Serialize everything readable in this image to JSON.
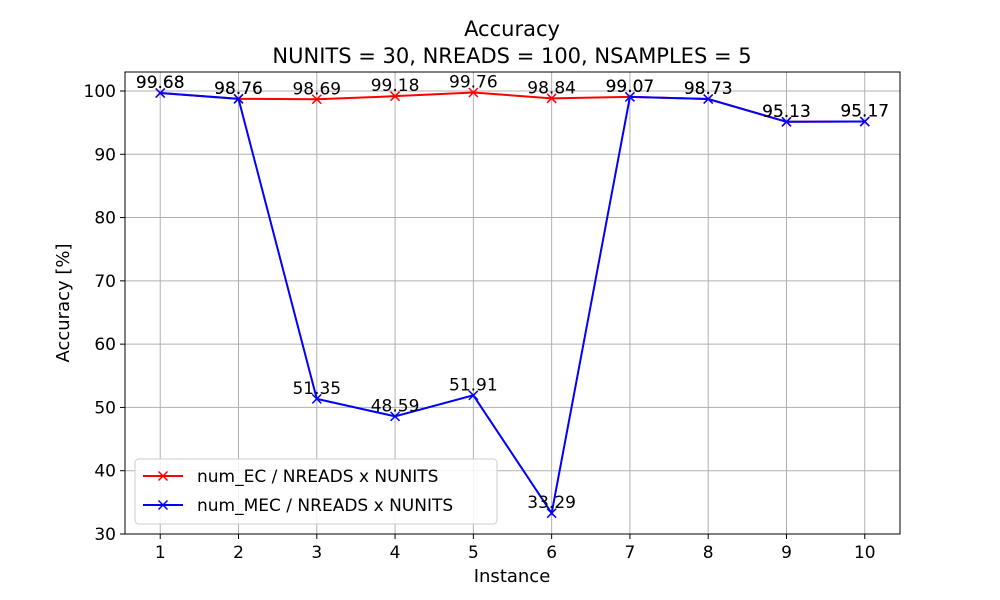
{
  "chart_data": {
    "type": "line",
    "title": "Accuracy",
    "subtitle": "NUNITS = 30, NREADS = 100, NSAMPLES = 5",
    "xlabel": "Instance",
    "ylabel": "Accuracy [%]",
    "x": [
      1,
      2,
      3,
      4,
      5,
      6,
      7,
      8,
      9,
      10
    ],
    "xlim": [
      0.55,
      10.45
    ],
    "ylim": [
      30,
      103
    ],
    "yticks": [
      30,
      40,
      50,
      60,
      70,
      80,
      90,
      100
    ],
    "grid": true,
    "legend_position": "lower-left",
    "series": [
      {
        "name": "num_EC / NREADS x NUNITS",
        "color": "#ff0000",
        "marker": "x",
        "values": [
          99.68,
          98.76,
          98.69,
          99.18,
          99.76,
          98.84,
          99.07,
          98.73,
          95.13,
          95.17
        ],
        "labels": [
          "99.68",
          "98.76",
          "98.69",
          "99.18",
          "99.76",
          "98.84",
          "99.07",
          "98.73",
          "95.13",
          "95.17"
        ]
      },
      {
        "name": "num_MEC / NREADS x NUNITS",
        "color": "#0000ff",
        "marker": "x",
        "values": [
          99.68,
          98.76,
          51.35,
          48.59,
          51.91,
          33.29,
          99.07,
          98.73,
          95.13,
          95.17
        ],
        "labels": [
          "99.68",
          "98.76",
          "51.35",
          "48.59",
          "51.91",
          "33.29",
          "99.07",
          "98.73",
          "95.13",
          "95.17"
        ]
      }
    ]
  }
}
